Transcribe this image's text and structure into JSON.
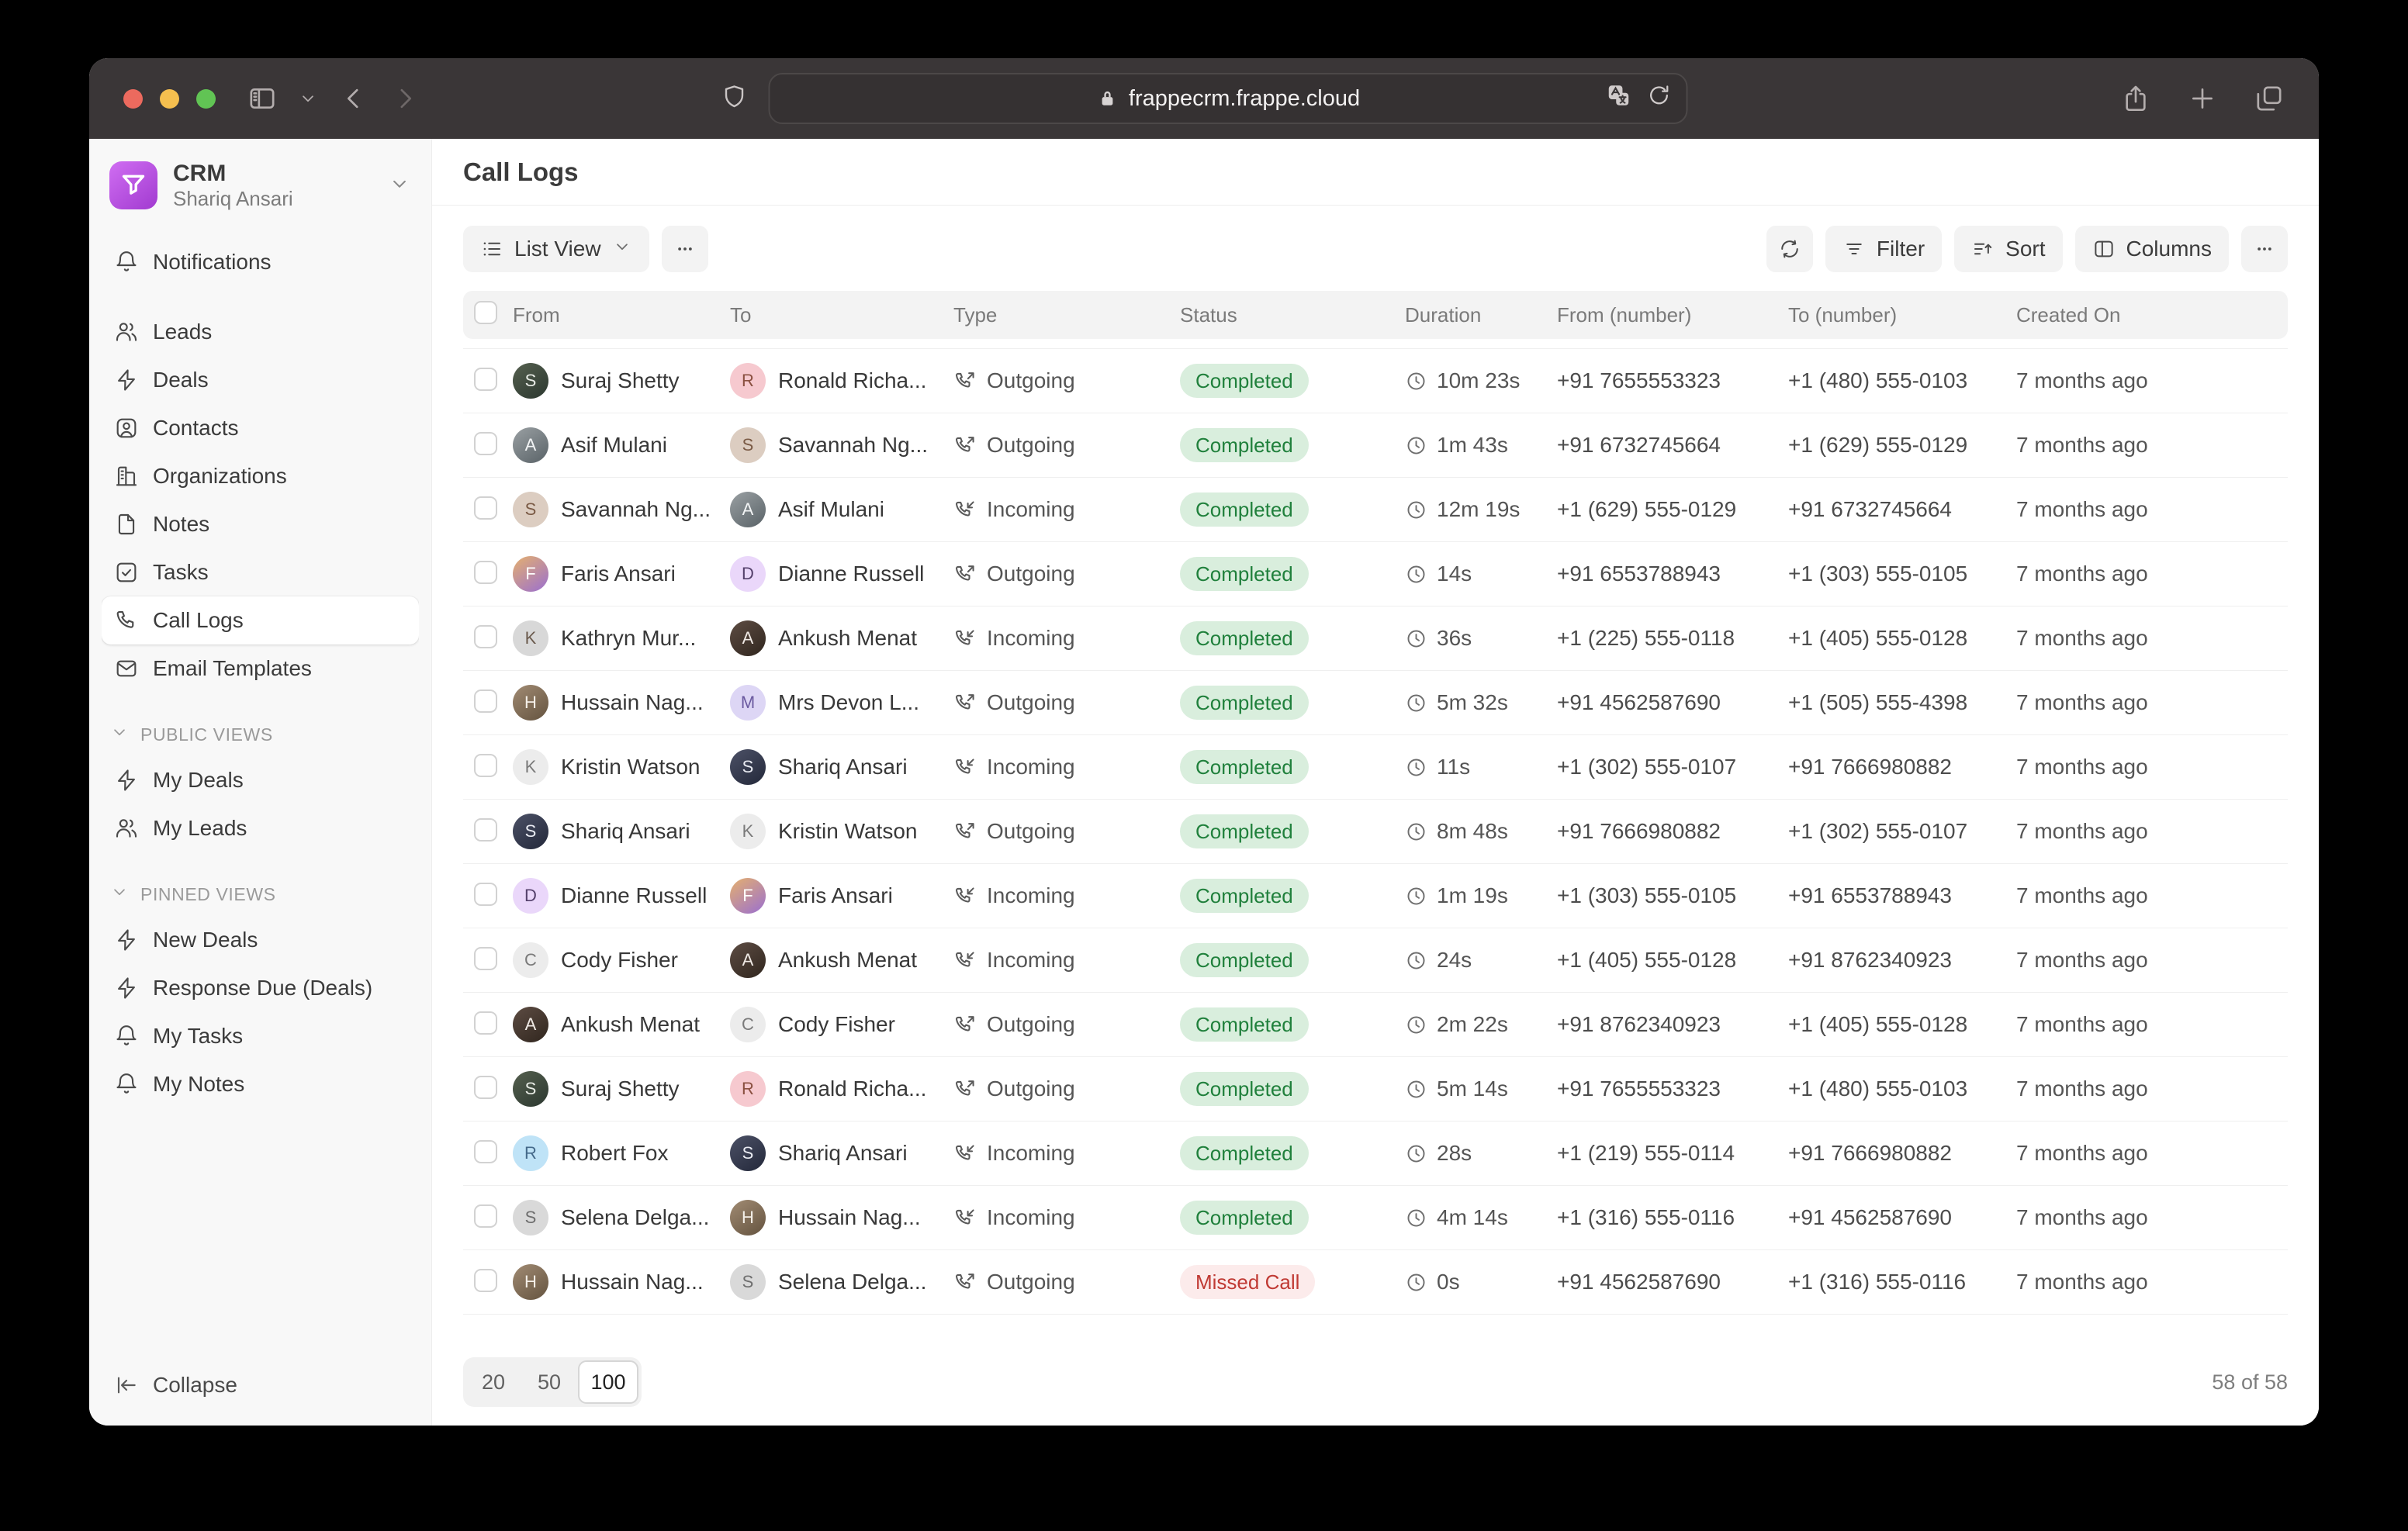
{
  "browser": {
    "url": "frappecrm.frappe.cloud",
    "icons": [
      "sidebar-toggle-icon",
      "chevron-down-icon",
      "back-icon",
      "forward-icon",
      "shield-icon",
      "lock-icon",
      "translate-icon",
      "reload-icon",
      "share-icon",
      "new-tab-icon",
      "tab-overview-icon"
    ]
  },
  "sidebar": {
    "app": {
      "title": "CRM",
      "user": "Shariq Ansari"
    },
    "items": [
      {
        "id": "notifications",
        "label": "Notifications",
        "icon": "bell",
        "active": false
      },
      {
        "id": "leads",
        "label": "Leads",
        "icon": "leads",
        "active": false
      },
      {
        "id": "deals",
        "label": "Deals",
        "icon": "zap",
        "active": false
      },
      {
        "id": "contacts",
        "label": "Contacts",
        "icon": "contact",
        "active": false
      },
      {
        "id": "organizations",
        "label": "Organizations",
        "icon": "building",
        "active": false
      },
      {
        "id": "notes",
        "label": "Notes",
        "icon": "file",
        "active": false
      },
      {
        "id": "tasks",
        "label": "Tasks",
        "icon": "task",
        "active": false
      },
      {
        "id": "call-logs",
        "label": "Call Logs",
        "icon": "phone",
        "active": true
      },
      {
        "id": "email-templates",
        "label": "Email Templates",
        "icon": "mail",
        "active": false
      }
    ],
    "sections": [
      {
        "id": "public-views",
        "label": "PUBLIC VIEWS",
        "items": [
          {
            "id": "my-deals",
            "label": "My Deals",
            "icon": "zap"
          },
          {
            "id": "my-leads",
            "label": "My Leads",
            "icon": "leads"
          }
        ]
      },
      {
        "id": "pinned-views",
        "label": "PINNED VIEWS",
        "items": [
          {
            "id": "new-deals",
            "label": "New Deals",
            "icon": "zap"
          },
          {
            "id": "response-due-deals",
            "label": "Response Due (Deals)",
            "icon": "zap"
          },
          {
            "id": "my-tasks",
            "label": "My Tasks",
            "icon": "bell"
          },
          {
            "id": "my-notes",
            "label": "My Notes",
            "icon": "bell"
          }
        ]
      }
    ],
    "collapse_label": "Collapse"
  },
  "people": {
    "Suraj Shetty": {
      "kind": "photo",
      "bg": "#55604f",
      "bg2": "#2c3830",
      "fg": "#e8ece6",
      "initial": "S"
    },
    "Ronald Richa...": {
      "kind": "emoji",
      "bg": "#f6c9cf",
      "bg2": "#f6c9cf",
      "fg": "#8a5040",
      "initial": "R"
    },
    "Asif Mulani": {
      "kind": "photo",
      "bg": "#9aa0a3",
      "bg2": "#596267",
      "fg": "#f2f4f5",
      "initial": "A"
    },
    "Savannah Ng...": {
      "kind": "emoji",
      "bg": "#dccdc1",
      "bg2": "#dccdc1",
      "fg": "#7a5a45",
      "initial": "S"
    },
    "Faris Ansari": {
      "kind": "photo",
      "bg": "#e5b06e",
      "bg2": "#9a6fd0",
      "fg": "#fff",
      "initial": "F"
    },
    "Dianne Russell": {
      "kind": "emoji",
      "bg": "#ead7fa",
      "bg2": "#ead7fa",
      "fg": "#54406b",
      "initial": "D"
    },
    "Kathryn Mur...": {
      "kind": "emoji",
      "bg": "#d8d8d8",
      "bg2": "#d8d8d8",
      "fg": "#6b5b4e",
      "initial": "K"
    },
    "Ankush Menat": {
      "kind": "photo",
      "bg": "#5d4c43",
      "bg2": "#30261e",
      "fg": "#efe9e4",
      "initial": "A"
    },
    "Hussain Nag...": {
      "kind": "photo",
      "bg": "#a18b73",
      "bg2": "#64533f",
      "fg": "#f4efe8",
      "initial": "H"
    },
    "Mrs Devon L...": {
      "kind": "emoji",
      "bg": "#ddd6f5",
      "bg2": "#ddd6f5",
      "fg": "#6b5aa0",
      "initial": "M"
    },
    "Kristin Watson": {
      "kind": "letter",
      "bg": "#ececec",
      "bg2": "#ececec",
      "fg": "#7a7a7a",
      "initial": "K"
    },
    "Shariq Ansari": {
      "kind": "photo",
      "bg": "#4c5166",
      "bg2": "#23283a",
      "fg": "#e9ebf2",
      "initial": "S"
    },
    "Cody Fisher": {
      "kind": "letter",
      "bg": "#ececec",
      "bg2": "#ececec",
      "fg": "#7a7a7a",
      "initial": "C"
    },
    "Robert Fox": {
      "kind": "emoji",
      "bg": "#bfe3f7",
      "bg2": "#bfe3f7",
      "fg": "#44698a",
      "initial": "R"
    },
    "Selena Delga...": {
      "kind": "emoji",
      "bg": "#d9d9d9",
      "bg2": "#d9d9d9",
      "fg": "#6e6e6e",
      "initial": "S"
    }
  },
  "main": {
    "title": "Call Logs",
    "toolbar": {
      "view_label": "List View",
      "filter_label": "Filter",
      "sort_label": "Sort",
      "columns_label": "Columns"
    },
    "table": {
      "columns": [
        "From",
        "To",
        "Type",
        "Status",
        "Duration",
        "From (number)",
        "To (number)",
        "Created On"
      ],
      "rows": [
        {
          "from": "Suraj Shetty",
          "to": "Ronald Richa...",
          "type": "Outgoing",
          "status": "Completed",
          "duration": "10m 23s",
          "from_number": "+91 7655553323",
          "to_number": "+1 (480) 555-0103",
          "created": "7 months ago"
        },
        {
          "from": "Asif Mulani",
          "to": "Savannah Ng...",
          "type": "Outgoing",
          "status": "Completed",
          "duration": "1m 43s",
          "from_number": "+91 6732745664",
          "to_number": "+1 (629) 555-0129",
          "created": "7 months ago"
        },
        {
          "from": "Savannah Ng...",
          "to": "Asif Mulani",
          "type": "Incoming",
          "status": "Completed",
          "duration": "12m 19s",
          "from_number": "+1 (629) 555-0129",
          "to_number": "+91 6732745664",
          "created": "7 months ago"
        },
        {
          "from": "Faris Ansari",
          "to": "Dianne Russell",
          "type": "Outgoing",
          "status": "Completed",
          "duration": "14s",
          "from_number": "+91 6553788943",
          "to_number": "+1 (303) 555-0105",
          "created": "7 months ago"
        },
        {
          "from": "Kathryn Mur...",
          "to": "Ankush Menat",
          "type": "Incoming",
          "status": "Completed",
          "duration": "36s",
          "from_number": "+1 (225) 555-0118",
          "to_number": "+1 (405) 555-0128",
          "created": "7 months ago"
        },
        {
          "from": "Hussain Nag...",
          "to": "Mrs Devon L...",
          "type": "Outgoing",
          "status": "Completed",
          "duration": "5m 32s",
          "from_number": "+91 4562587690",
          "to_number": "+1 (505) 555-4398",
          "created": "7 months ago"
        },
        {
          "from": "Kristin Watson",
          "to": "Shariq Ansari",
          "type": "Incoming",
          "status": "Completed",
          "duration": "11s",
          "from_number": "+1 (302) 555-0107",
          "to_number": "+91 7666980882",
          "created": "7 months ago"
        },
        {
          "from": "Shariq Ansari",
          "to": "Kristin Watson",
          "type": "Outgoing",
          "status": "Completed",
          "duration": "8m 48s",
          "from_number": "+91 7666980882",
          "to_number": "+1 (302) 555-0107",
          "created": "7 months ago"
        },
        {
          "from": "Dianne Russell",
          "to": "Faris Ansari",
          "type": "Incoming",
          "status": "Completed",
          "duration": "1m 19s",
          "from_number": "+1 (303) 555-0105",
          "to_number": "+91 6553788943",
          "created": "7 months ago"
        },
        {
          "from": "Cody Fisher",
          "to": "Ankush Menat",
          "type": "Incoming",
          "status": "Completed",
          "duration": "24s",
          "from_number": "+1 (405) 555-0128",
          "to_number": "+91 8762340923",
          "created": "7 months ago"
        },
        {
          "from": "Ankush Menat",
          "to": "Cody Fisher",
          "type": "Outgoing",
          "status": "Completed",
          "duration": "2m 22s",
          "from_number": "+91 8762340923",
          "to_number": "+1 (405) 555-0128",
          "created": "7 months ago"
        },
        {
          "from": "Suraj Shetty",
          "to": "Ronald Richa...",
          "type": "Outgoing",
          "status": "Completed",
          "duration": "5m 14s",
          "from_number": "+91 7655553323",
          "to_number": "+1 (480) 555-0103",
          "created": "7 months ago"
        },
        {
          "from": "Robert Fox",
          "to": "Shariq Ansari",
          "type": "Incoming",
          "status": "Completed",
          "duration": "28s",
          "from_number": "+1 (219) 555-0114",
          "to_number": "+91 7666980882",
          "created": "7 months ago"
        },
        {
          "from": "Selena Delga...",
          "to": "Hussain Nag...",
          "type": "Incoming",
          "status": "Completed",
          "duration": "4m 14s",
          "from_number": "+1 (316) 555-0116",
          "to_number": "+91 4562587690",
          "created": "7 months ago"
        },
        {
          "from": "Hussain Nag...",
          "to": "Selena Delga...",
          "type": "Outgoing",
          "status": "Missed Call",
          "duration": "0s",
          "from_number": "+91 4562587690",
          "to_number": "+1 (316) 555-0116",
          "created": "7 months ago"
        }
      ]
    },
    "footer": {
      "page_sizes": [
        "20",
        "50",
        "100"
      ],
      "selected_page_size": "100",
      "count": "58 of 58"
    }
  }
}
